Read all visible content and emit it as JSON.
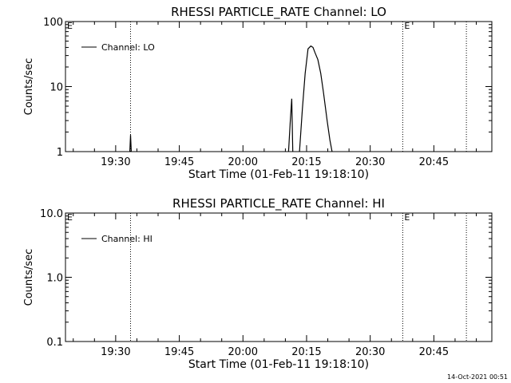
{
  "footer": {
    "timestamp": "14-Oct-2021 00:51"
  },
  "chart_data": [
    {
      "type": "line",
      "title": "RHESSI PARTICLE_RATE Channel: LO",
      "xlabel": "Start Time (01-Feb-11 19:18:10)",
      "ylabel": "Counts/sec",
      "y_scale": "log",
      "ylim": [
        1,
        100
      ],
      "xlim": [
        "19:18:10",
        "20:58:40"
      ],
      "x_ticks": [
        "19:30",
        "19:45",
        "20:00",
        "20:15",
        "20:30",
        "20:45"
      ],
      "y_ticks": [
        "1",
        "10",
        "100"
      ],
      "legend": {
        "position": "top-left",
        "entries": [
          "Channel: LO"
        ]
      },
      "markers": [
        {
          "x": "19:33:30",
          "label": ""
        },
        {
          "x": "20:37:40",
          "label": "E"
        },
        {
          "x": "20:52:40",
          "label": ""
        }
      ],
      "left_marker_label": "E",
      "series": [
        {
          "name": "Channel: LO",
          "points": [
            [
              "19:33:20",
              1
            ],
            [
              "19:33:30",
              1.8
            ],
            [
              "19:33:40",
              1
            ],
            [
              "20:10:45",
              1
            ],
            [
              "20:11:10",
              3
            ],
            [
              "20:11:30",
              6.5
            ],
            [
              "20:11:45",
              1
            ],
            [
              "20:13:20",
              1
            ],
            [
              "20:14:00",
              4.5
            ],
            [
              "20:14:40",
              16
            ],
            [
              "20:15:20",
              38
            ],
            [
              "20:16:00",
              42
            ],
            [
              "20:16:30",
              40
            ],
            [
              "20:17:00",
              33
            ],
            [
              "20:17:40",
              26
            ],
            [
              "20:18:20",
              16
            ],
            [
              "20:19:00",
              8
            ],
            [
              "20:19:50",
              3
            ],
            [
              "20:20:30",
              1.5
            ],
            [
              "20:21:00",
              1
            ]
          ]
        }
      ]
    },
    {
      "type": "line",
      "title": "RHESSI PARTICLE_RATE Channel: HI",
      "xlabel": "Start Time (01-Feb-11 19:18:10)",
      "ylabel": "Counts/sec",
      "y_scale": "log",
      "ylim": [
        0.1,
        10
      ],
      "xlim": [
        "19:18:10",
        "20:58:40"
      ],
      "x_ticks": [
        "19:30",
        "19:45",
        "20:00",
        "20:15",
        "20:30",
        "20:45"
      ],
      "y_ticks": [
        "0.1",
        "1.0",
        "10.0"
      ],
      "legend": {
        "position": "top-left",
        "entries": [
          "Channel: HI"
        ]
      },
      "markers": [
        {
          "x": "19:33:30",
          "label": ""
        },
        {
          "x": "20:37:40",
          "label": "E"
        },
        {
          "x": "20:52:40",
          "label": ""
        }
      ],
      "left_marker_label": "E",
      "series": [
        {
          "name": "Channel: HI",
          "points": []
        }
      ]
    }
  ]
}
